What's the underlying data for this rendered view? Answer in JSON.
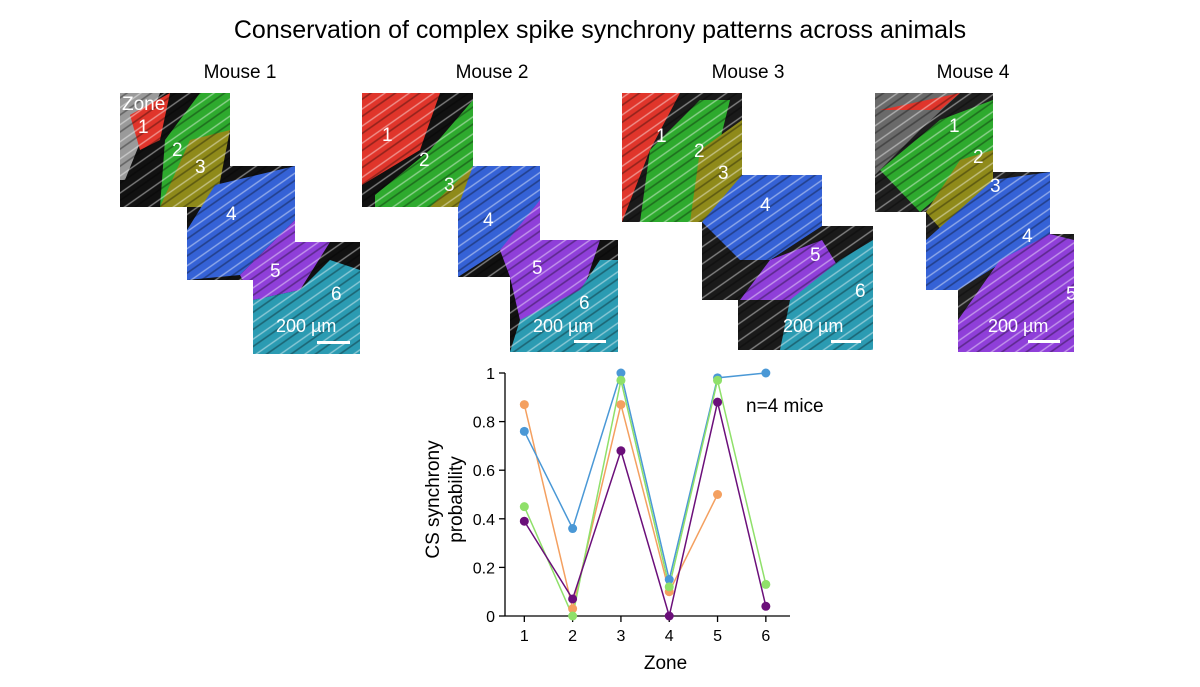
{
  "title": "Conservation of complex spike synchrony patterns across animals",
  "panels": [
    {
      "label": "Mouse 1",
      "zone_header": "Zone",
      "zones": [
        "1",
        "2",
        "3",
        "4",
        "5",
        "6"
      ],
      "scalebar": "200 µm"
    },
    {
      "label": "Mouse 2",
      "zones": [
        "1",
        "2",
        "3",
        "4",
        "5",
        "6"
      ],
      "scalebar": "200 µm"
    },
    {
      "label": "Mouse 3",
      "zones": [
        "1",
        "2",
        "3",
        "4",
        "5",
        "6"
      ],
      "scalebar": "200 µm"
    },
    {
      "label": "Mouse 4",
      "zones": [
        "1",
        "2",
        "3",
        "4",
        "5"
      ],
      "scalebar": "200 µm"
    }
  ],
  "zone_colors": {
    "1": "#e0352b",
    "2": "#2eaa2e",
    "3": "#8f8a1a",
    "4": "#3562d6",
    "5": "#8f3fd9",
    "6": "#2b9bb2"
  },
  "chart_data": {
    "type": "line",
    "xlabel": "Zone",
    "ylabel_line1": "CS synchrony",
    "ylabel_line2": "probability",
    "x_ticks": [
      "1",
      "2",
      "3",
      "4",
      "5",
      "6"
    ],
    "y_ticks": [
      "0",
      "0.2",
      "0.4",
      "0.6",
      "0.8",
      "1"
    ],
    "xlim": [
      0.6,
      6.5
    ],
    "ylim": [
      0,
      1
    ],
    "annotation": "n=4 mice",
    "series": [
      {
        "color": "#f4a060",
        "points": [
          [
            1,
            0.87
          ],
          [
            2,
            0.03
          ],
          [
            3,
            0.87
          ],
          [
            4,
            0.1
          ],
          [
            5,
            0.5
          ]
        ]
      },
      {
        "color": "#4a98d6",
        "points": [
          [
            1,
            0.76
          ],
          [
            2,
            0.36
          ],
          [
            3,
            1.0
          ],
          [
            4,
            0.15
          ],
          [
            5,
            0.98
          ],
          [
            6,
            1.0
          ]
        ]
      },
      {
        "color": "#8fe06a",
        "points": [
          [
            1,
            0.45
          ],
          [
            2,
            0.0
          ],
          [
            3,
            0.97
          ],
          [
            4,
            0.12
          ],
          [
            5,
            0.97
          ],
          [
            6,
            0.13
          ]
        ]
      },
      {
        "color": "#6b0f7a",
        "points": [
          [
            1,
            0.39
          ],
          [
            2,
            0.07
          ],
          [
            3,
            0.68
          ],
          [
            4,
            0.0
          ],
          [
            5,
            0.88
          ],
          [
            6,
            0.04
          ]
        ]
      }
    ]
  }
}
